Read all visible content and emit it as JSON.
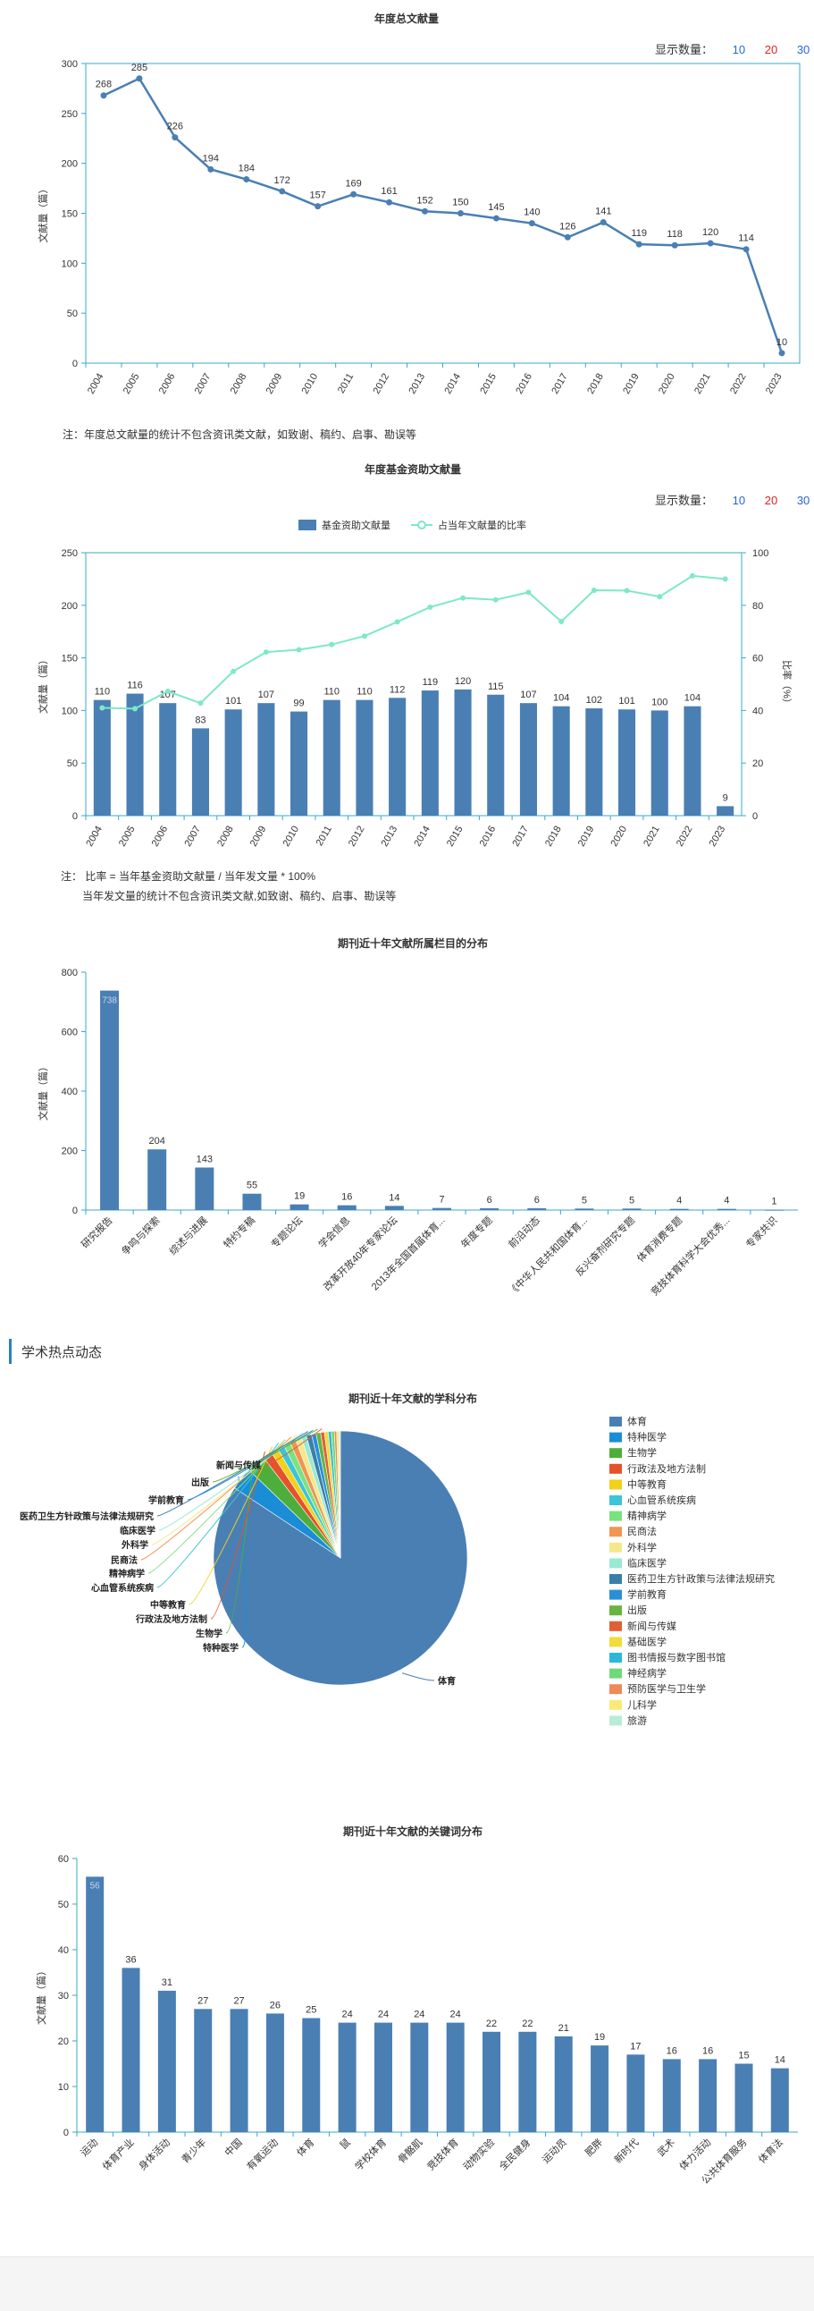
{
  "chart1": {
    "title": "年度总文献量",
    "count_label": "显示数量：",
    "count_options": [
      "10",
      "20",
      "30"
    ],
    "note": "注：年度总文献量的统计不包含资讯类文献，如致谢、稿约、启事、勘误等",
    "chart_data": {
      "type": "line",
      "title": "年度总文献量",
      "ylabel": "文献量（篇）",
      "ylim": [
        0,
        300
      ],
      "yticks": [
        0,
        50,
        100,
        150,
        200,
        250,
        300
      ],
      "x": [
        "2004",
        "2005",
        "2006",
        "2007",
        "2008",
        "2009",
        "2010",
        "2011",
        "2012",
        "2013",
        "2014",
        "2015",
        "2016",
        "2017",
        "2018",
        "2019",
        "2020",
        "2021",
        "2022",
        "2023"
      ],
      "values": [
        268,
        285,
        226,
        194,
        184,
        172,
        157,
        169,
        161,
        152,
        150,
        145,
        140,
        126,
        141,
        119,
        118,
        120,
        114,
        10
      ],
      "color": "#4a7fb4"
    }
  },
  "chart2": {
    "title": "年度基金资助文献量",
    "count_label": "显示数量：",
    "count_options": [
      "10",
      "20",
      "30"
    ],
    "note_line1": "注：  比率 = 当年基金资助文献量 / 当年发文量 * 100%",
    "note_line2": "当年发文量的统计不包含资讯类文献,如致谢、稿约、启事、勘误等",
    "chart_data": {
      "type": "bar",
      "ylabel": "文献量（篇）",
      "y2label": "比率（%）",
      "ylim": [
        0,
        250
      ],
      "y2lim": [
        0,
        100
      ],
      "yticks": [
        0,
        50,
        100,
        150,
        200,
        250
      ],
      "y2ticks": [
        0,
        20,
        40,
        60,
        80,
        100
      ],
      "categories": [
        "2004",
        "2005",
        "2006",
        "2007",
        "2008",
        "2009",
        "2010",
        "2011",
        "2012",
        "2013",
        "2014",
        "2015",
        "2016",
        "2017",
        "2018",
        "2019",
        "2020",
        "2021",
        "2022",
        "2023"
      ],
      "series": [
        {
          "name": "基金资助文献量",
          "type": "bar",
          "color": "#4a7fb4",
          "values": [
            110,
            116,
            107,
            83,
            101,
            107,
            99,
            110,
            110,
            112,
            119,
            120,
            115,
            107,
            104,
            102,
            101,
            100,
            104,
            9
          ]
        },
        {
          "name": "占当年文献量的比率",
          "type": "line",
          "color": "#7ee8c8",
          "values": [
            41,
            40.7,
            47.3,
            42.8,
            54.9,
            62.2,
            63.1,
            65.1,
            68.3,
            73.7,
            79.3,
            82.8,
            82.1,
            84.9,
            73.8,
            85.7,
            85.6,
            83.3,
            91.2,
            90
          ]
        }
      ]
    }
  },
  "chart3": {
    "title": "期刊近十年文献所属栏目的分布",
    "chart_data": {
      "type": "bar",
      "ylabel": "文献量（篇）",
      "ylim": [
        0,
        800
      ],
      "yticks": [
        0,
        200,
        400,
        600,
        800
      ],
      "categories": [
        "研究报告",
        "争鸣与探索",
        "综述与进展",
        "特约专稿",
        "专题论坛",
        "学会信息",
        "改革开放40年专家论坛",
        "2013年全国首届体育...",
        "年度专题",
        "前沿动态",
        "《中华人民共和国体育...",
        "反兴奋剂研究专题",
        "体育消费专题",
        "竞技体育科学大会优秀...",
        "专家共识"
      ],
      "values": [
        738,
        204,
        143,
        55,
        19,
        16,
        14,
        7,
        6,
        6,
        5,
        5,
        4,
        4,
        1
      ],
      "color": "#4a7fb4"
    }
  },
  "hot_section": {
    "label": "学术热点动态"
  },
  "chart4": {
    "title": "期刊近十年文献的学科分布",
    "chart_data": {
      "type": "pie",
      "labels": [
        "体育",
        "特种医学",
        "生物学",
        "行政法及地方法制",
        "中等教育",
        "心血管系统疾病",
        "精神病学",
        "民商法",
        "外科学",
        "临床医学",
        "医药卫生方针政策与法律法规研究",
        "学前教育",
        "出版",
        "新闻与传媒",
        "基础医学",
        "图书情报与数字图书馆",
        "神经病学",
        "预防医学与卫生学",
        "儿科学",
        "旅游"
      ],
      "values": [
        875,
        30,
        25,
        12,
        10,
        9,
        9,
        8,
        8,
        7,
        7,
        6,
        6,
        5,
        5,
        4,
        4,
        3,
        3,
        2
      ],
      "colors": [
        "#4a7fb4",
        "#1a8dd6",
        "#4eae3b",
        "#e5512c",
        "#f0d218",
        "#3cc4d8",
        "#7ae27e",
        "#f19552",
        "#f5e88b",
        "#9be8d4",
        "#3a7fa8",
        "#2a8fd8",
        "#67b441",
        "#e06034",
        "#f2dc3a",
        "#2ab9d8",
        "#6fd97a",
        "#ee8a58",
        "#fbe978",
        "#b8ecd8"
      ]
    }
  },
  "chart5": {
    "title": "期刊近十年文献的关键词分布",
    "chart_data": {
      "type": "bar",
      "ylabel": "文献量（篇）",
      "ylim": [
        0,
        60
      ],
      "yticks": [
        0,
        10,
        20,
        30,
        40,
        50,
        60
      ],
      "categories": [
        "运动",
        "体育产业",
        "身体活动",
        "青少年",
        "中国",
        "有氧运动",
        "体育",
        "鼠",
        "学校体育",
        "骨骼肌",
        "竞技体育",
        "动物实验",
        "全民健身",
        "运动员",
        "肥胖",
        "新时代",
        "武术",
        "体力活动",
        "公共体育服务",
        "体育法"
      ],
      "values": [
        56,
        36,
        31,
        27,
        27,
        26,
        25,
        24,
        24,
        24,
        24,
        22,
        22,
        21,
        19,
        17,
        16,
        16,
        15,
        14
      ],
      "color": "#4a7fb4"
    }
  }
}
